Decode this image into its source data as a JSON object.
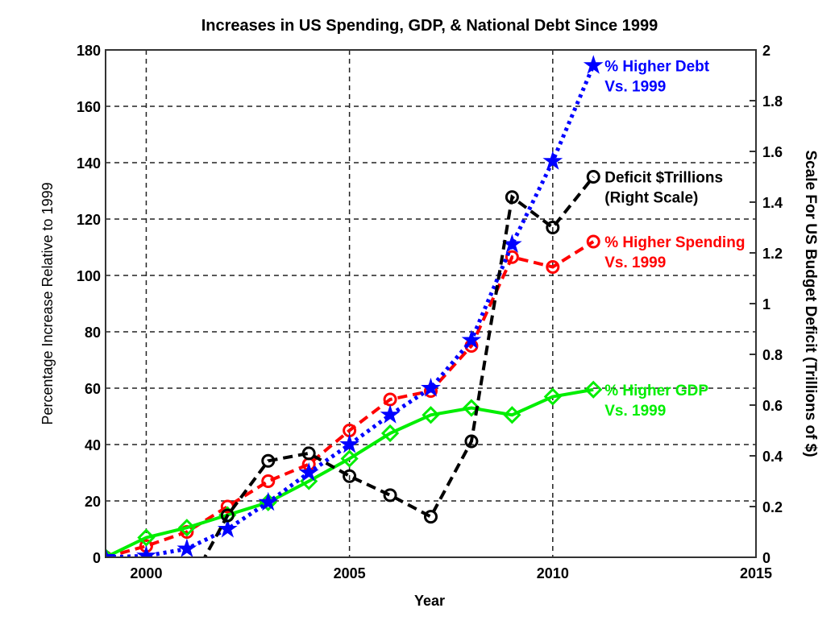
{
  "chart_data": {
    "type": "line",
    "title": "Increases in US Spending, GDP, & National Debt Since 1999",
    "xlabel": "Year",
    "ylabel": "Percentage Increase Relative to 1999",
    "ylabel_right": "Scale For US Budget Deficit (Trillions of $)",
    "xlim": [
      1999,
      2015
    ],
    "ylim": [
      0,
      180
    ],
    "ylim_right": [
      0,
      2
    ],
    "xticks": [
      2000,
      2005,
      2010,
      2015
    ],
    "yticks": [
      0,
      20,
      40,
      60,
      80,
      100,
      120,
      140,
      160,
      180
    ],
    "yticks_right": [
      0,
      0.2,
      0.4,
      0.6,
      0.8,
      1,
      1.2,
      1.4,
      1.6,
      1.8,
      2
    ],
    "grid": true,
    "x": [
      1999,
      2000,
      2001,
      2002,
      2003,
      2004,
      2005,
      2006,
      2007,
      2008,
      2009,
      2010,
      2011
    ],
    "series": [
      {
        "name": "% Higher Spending Vs. 1999",
        "label_lines": [
          "% Higher Spending",
          "Vs. 1999"
        ],
        "color": "#ff0000",
        "axis": "left",
        "marker": "circle",
        "dash": "dashed",
        "values": [
          0,
          4,
          9,
          18,
          27,
          33,
          45,
          56,
          59,
          75,
          106.5,
          103,
          112
        ]
      },
      {
        "name": "% Higher GDP Vs. 1999",
        "label_lines": [
          "% Higher GDP",
          "Vs. 1999"
        ],
        "color": "#00ee00",
        "axis": "left",
        "marker": "diamond",
        "dash": "solid",
        "values": [
          0,
          7,
          10.5,
          15,
          19.5,
          27,
          35,
          44,
          50.5,
          53,
          50.5,
          57,
          59.5
        ]
      },
      {
        "name": "% Higher Debt Vs. 1999",
        "label_lines": [
          "% Higher Debt",
          "Vs. 1999"
        ],
        "color": "#0000ff",
        "axis": "left",
        "marker": "star",
        "dash": "dotted",
        "values": [
          0,
          0.5,
          3,
          10,
          19.5,
          30,
          40,
          50.5,
          60,
          77,
          111,
          140.5,
          174.5
        ]
      },
      {
        "name": "Deficit $Trillions (Right Scale)",
        "label_lines": [
          "Deficit $Trillions",
          "(Right Scale)"
        ],
        "color": "#000000",
        "axis": "right",
        "marker": "circle",
        "dash": "dashed",
        "values": [
          null,
          null,
          -0.13,
          0.165,
          0.38,
          0.41,
          0.32,
          0.245,
          0.16,
          0.457,
          1.42,
          1.3,
          1.5
        ]
      }
    ]
  }
}
